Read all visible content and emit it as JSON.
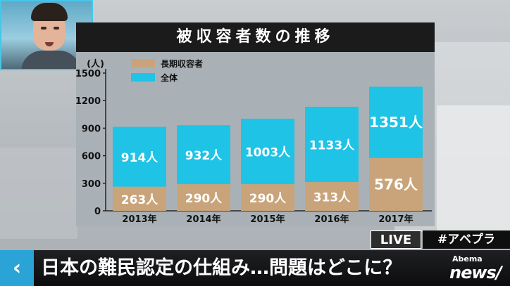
{
  "title": "被収容者数の推移",
  "chart_data": {
    "type": "bar",
    "title": "被収容者数の推移",
    "categories": [
      "2013年",
      "2014年",
      "2015年",
      "2016年",
      "2017年"
    ],
    "series": [
      {
        "name": "全体",
        "values": [
          914,
          932,
          1003,
          1133,
          1351
        ],
        "color": "#1ec3e6"
      },
      {
        "name": "長期収容者",
        "values": [
          263,
          290,
          290,
          313,
          576
        ],
        "color": "#c9a47a"
      }
    ],
    "value_labels": {
      "全体": [
        "914人",
        "932人",
        "1003人",
        "1133人",
        "1351人"
      ],
      "長期収容者": [
        "263人",
        "290人",
        "290人",
        "313人",
        "576人"
      ]
    },
    "yticks": [
      0,
      300,
      600,
      900,
      1200,
      1500
    ],
    "yunit": "(人)",
    "ylim": [
      0,
      1500
    ],
    "legend_position": "top-left",
    "grid": false
  },
  "overlay": {
    "live": "LIVE",
    "hashtag": "#アベプラ",
    "back_icon": "chevron-left-icon",
    "back_symbol": "‹",
    "headline": "日本の難民認定の仕組み…問題はどこに？",
    "logo_small": "Abema",
    "logo_large": "news/"
  }
}
